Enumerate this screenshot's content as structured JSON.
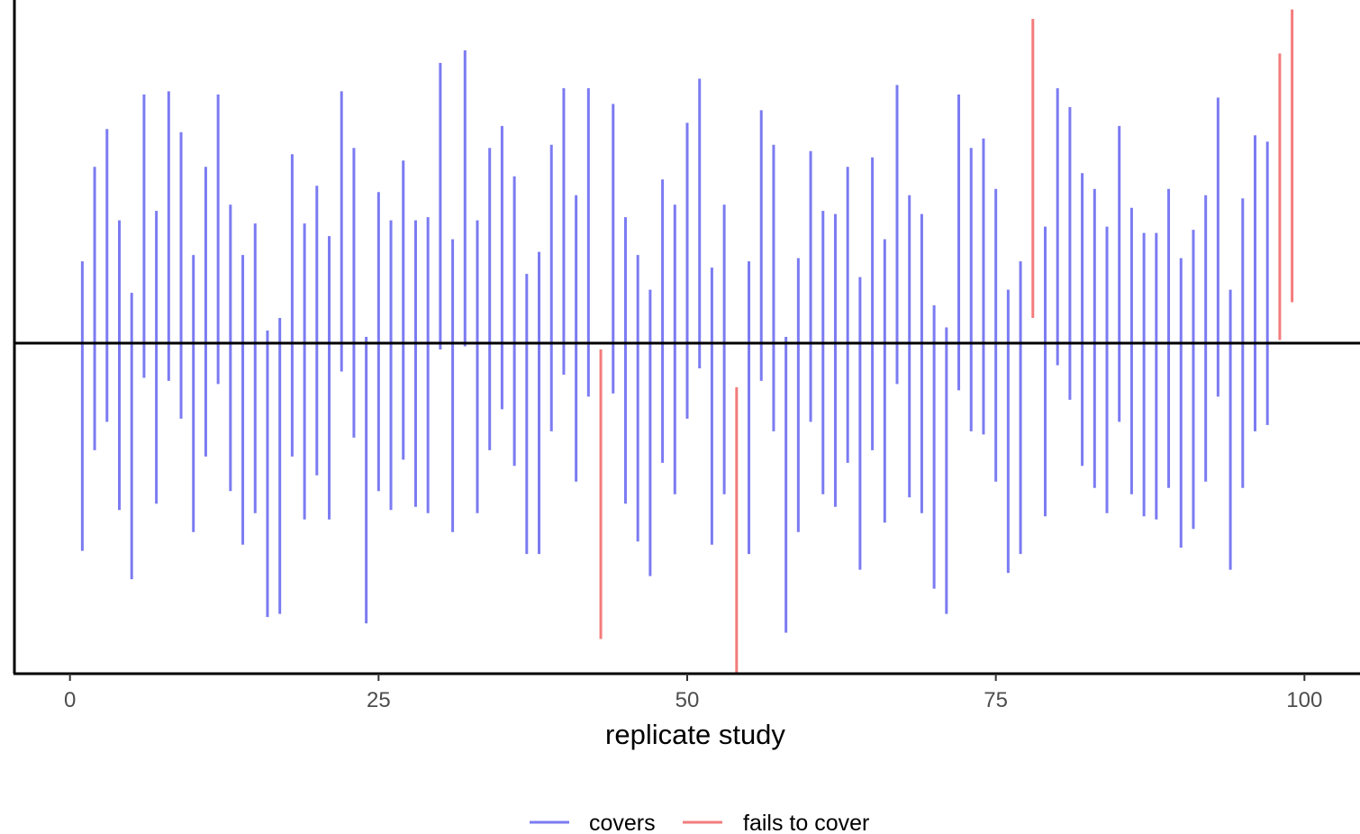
{
  "chart_data": {
    "type": "interval",
    "xlabel": "replicate study",
    "ylabel": "",
    "xlim": [
      -4.5,
      104.5
    ],
    "ylim": [
      -10.5,
      10.9
    ],
    "reference_line": 0,
    "x_ticks": [
      0,
      25,
      50,
      75,
      100
    ],
    "x_tick_labels": [
      "0",
      "25",
      "50",
      "75",
      "100"
    ],
    "grid": false,
    "legend_position": "bottom",
    "colors": {
      "covers": "#7b7bf2",
      "fails to cover": "#f47c7c"
    },
    "legend": [
      {
        "key": "covers",
        "label": "covers",
        "color": "#7b7bf2"
      },
      {
        "key": "fails",
        "label": "fails to cover",
        "color": "#f47c7c"
      }
    ],
    "series": [
      {
        "name": "covers",
        "intervals": [
          {
            "x": 1,
            "low": -6.6,
            "high": 2.6
          },
          {
            "x": 2,
            "low": -3.4,
            "high": 5.6
          },
          {
            "x": 3,
            "low": -2.5,
            "high": 6.8
          },
          {
            "x": 4,
            "low": -5.3,
            "high": 3.9
          },
          {
            "x": 5,
            "low": -7.5,
            "high": 1.6
          },
          {
            "x": 6,
            "low": -1.1,
            "high": 7.9
          },
          {
            "x": 7,
            "low": -5.1,
            "high": 4.2
          },
          {
            "x": 8,
            "low": -1.2,
            "high": 8.0
          },
          {
            "x": 9,
            "low": -2.4,
            "high": 6.7
          },
          {
            "x": 10,
            "low": -6.0,
            "high": 2.8
          },
          {
            "x": 11,
            "low": -3.6,
            "high": 5.6
          },
          {
            "x": 12,
            "low": -1.3,
            "high": 7.9
          },
          {
            "x": 13,
            "low": -4.7,
            "high": 4.4
          },
          {
            "x": 14,
            "low": -6.4,
            "high": 2.8
          },
          {
            "x": 15,
            "low": -5.4,
            "high": 3.8
          },
          {
            "x": 16,
            "low": -8.7,
            "high": 0.4
          },
          {
            "x": 17,
            "low": -8.6,
            "high": 0.8
          },
          {
            "x": 18,
            "low": -3.6,
            "high": 6.0
          },
          {
            "x": 19,
            "low": -5.6,
            "high": 3.8
          },
          {
            "x": 20,
            "low": -4.2,
            "high": 5.0
          },
          {
            "x": 21,
            "low": -5.6,
            "high": 3.4
          },
          {
            "x": 22,
            "low": -0.9,
            "high": 8.0
          },
          {
            "x": 23,
            "low": -3.0,
            "high": 6.2
          },
          {
            "x": 24,
            "low": -8.9,
            "high": 0.2
          },
          {
            "x": 25,
            "low": -4.7,
            "high": 4.8
          },
          {
            "x": 26,
            "low": -5.3,
            "high": 3.9
          },
          {
            "x": 27,
            "low": -3.7,
            "high": 5.8
          },
          {
            "x": 28,
            "low": -5.2,
            "high": 3.9
          },
          {
            "x": 29,
            "low": -5.4,
            "high": 4.0
          },
          {
            "x": 30,
            "low": -0.2,
            "high": 8.9
          },
          {
            "x": 31,
            "low": -6.0,
            "high": 3.3
          },
          {
            "x": 32,
            "low": -0.1,
            "high": 9.3
          },
          {
            "x": 33,
            "low": -5.4,
            "high": 3.9
          },
          {
            "x": 34,
            "low": -3.4,
            "high": 6.2
          },
          {
            "x": 35,
            "low": -2.1,
            "high": 6.9
          },
          {
            "x": 36,
            "low": -3.9,
            "high": 5.3
          },
          {
            "x": 37,
            "low": -6.7,
            "high": 2.2
          },
          {
            "x": 38,
            "low": -6.7,
            "high": 2.9
          },
          {
            "x": 39,
            "low": -2.8,
            "high": 6.3
          },
          {
            "x": 40,
            "low": -1.0,
            "high": 8.1
          },
          {
            "x": 41,
            "low": -4.4,
            "high": 4.7
          },
          {
            "x": 42,
            "low": -1.7,
            "high": 8.1
          },
          {
            "x": 44,
            "low": -1.6,
            "high": 7.6
          },
          {
            "x": 45,
            "low": -5.1,
            "high": 4.0
          },
          {
            "x": 46,
            "low": -6.3,
            "high": 2.8
          },
          {
            "x": 47,
            "low": -7.4,
            "high": 1.7
          },
          {
            "x": 48,
            "low": -3.8,
            "high": 5.2
          },
          {
            "x": 49,
            "low": -4.8,
            "high": 4.4
          },
          {
            "x": 50,
            "low": -2.4,
            "high": 7.0
          },
          {
            "x": 51,
            "low": -0.8,
            "high": 8.4
          },
          {
            "x": 52,
            "low": -6.4,
            "high": 2.4
          },
          {
            "x": 53,
            "low": -4.8,
            "high": 4.4
          },
          {
            "x": 55,
            "low": -6.7,
            "high": 2.6
          },
          {
            "x": 56,
            "low": -1.2,
            "high": 7.4
          },
          {
            "x": 57,
            "low": -2.8,
            "high": 6.3
          },
          {
            "x": 58,
            "low": -9.2,
            "high": 0.2
          },
          {
            "x": 59,
            "low": -6.0,
            "high": 2.7
          },
          {
            "x": 60,
            "low": -2.5,
            "high": 6.1
          },
          {
            "x": 61,
            "low": -4.8,
            "high": 4.2
          },
          {
            "x": 62,
            "low": -5.2,
            "high": 4.1
          },
          {
            "x": 63,
            "low": -3.8,
            "high": 5.6
          },
          {
            "x": 64,
            "low": -7.2,
            "high": 2.1
          },
          {
            "x": 65,
            "low": -3.4,
            "high": 5.9
          },
          {
            "x": 66,
            "low": -5.7,
            "high": 3.3
          },
          {
            "x": 67,
            "low": -1.3,
            "high": 8.2
          },
          {
            "x": 68,
            "low": -4.9,
            "high": 4.7
          },
          {
            "x": 69,
            "low": -5.4,
            "high": 4.1
          },
          {
            "x": 70,
            "low": -7.8,
            "high": 1.2
          },
          {
            "x": 71,
            "low": -8.6,
            "high": 0.5
          },
          {
            "x": 72,
            "low": -1.5,
            "high": 7.9
          },
          {
            "x": 73,
            "low": -2.8,
            "high": 6.2
          },
          {
            "x": 74,
            "low": -2.9,
            "high": 6.5
          },
          {
            "x": 75,
            "low": -4.4,
            "high": 4.9
          },
          {
            "x": 76,
            "low": -7.3,
            "high": 1.7
          },
          {
            "x": 77,
            "low": -6.7,
            "high": 2.6
          },
          {
            "x": 79,
            "low": -5.5,
            "high": 3.7
          },
          {
            "x": 80,
            "low": -0.7,
            "high": 8.1
          },
          {
            "x": 81,
            "low": -1.8,
            "high": 7.5
          },
          {
            "x": 82,
            "low": -3.9,
            "high": 5.4
          },
          {
            "x": 83,
            "low": -4.6,
            "high": 4.9
          },
          {
            "x": 84,
            "low": -5.4,
            "high": 3.7
          },
          {
            "x": 85,
            "low": -2.5,
            "high": 6.9
          },
          {
            "x": 86,
            "low": -4.8,
            "high": 4.3
          },
          {
            "x": 87,
            "low": -5.5,
            "high": 3.5
          },
          {
            "x": 88,
            "low": -5.6,
            "high": 3.5
          },
          {
            "x": 89,
            "low": -4.6,
            "high": 4.9
          },
          {
            "x": 90,
            "low": -6.5,
            "high": 2.7
          },
          {
            "x": 91,
            "low": -5.9,
            "high": 3.6
          },
          {
            "x": 92,
            "low": -4.4,
            "high": 4.7
          },
          {
            "x": 93,
            "low": -1.7,
            "high": 7.8
          },
          {
            "x": 94,
            "low": -7.2,
            "high": 1.7
          },
          {
            "x": 95,
            "low": -4.6,
            "high": 4.6
          },
          {
            "x": 96,
            "low": -2.8,
            "high": 6.6
          },
          {
            "x": 97,
            "low": -2.6,
            "high": 6.4
          }
        ]
      },
      {
        "name": "fails to cover",
        "intervals": [
          {
            "x": 43,
            "low": -9.4,
            "high": -0.2
          },
          {
            "x": 54,
            "low": -10.5,
            "high": -1.4
          },
          {
            "x": 78,
            "low": 0.8,
            "high": 10.3
          },
          {
            "x": 98,
            "low": 0.1,
            "high": 9.2
          },
          {
            "x": 99,
            "low": 1.3,
            "high": 10.6
          }
        ]
      }
    ]
  }
}
